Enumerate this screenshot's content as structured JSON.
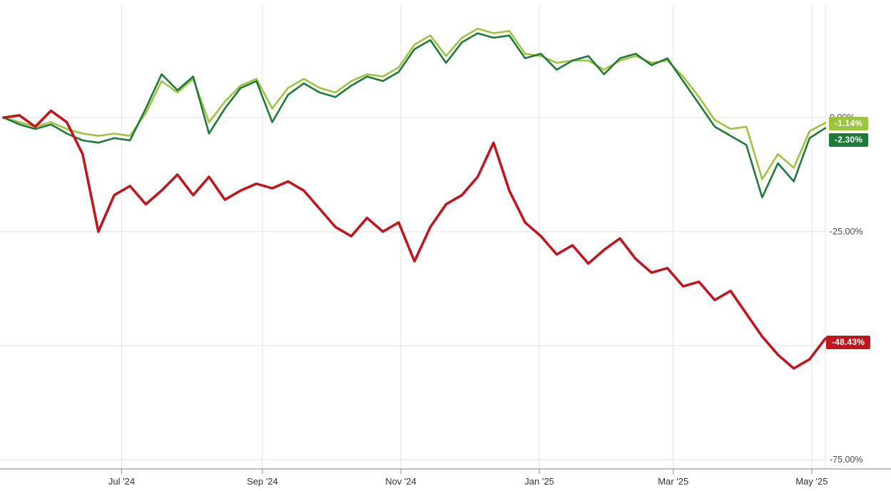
{
  "chart_data": {
    "type": "line",
    "title": "",
    "xlabel": "",
    "ylabel": "",
    "grid": true,
    "legend_position": "none (end-value badges at right edge)",
    "x_axis": {
      "total_days": 362,
      "ticks": [
        {
          "label": "Jul '24",
          "day": 52
        },
        {
          "label": "Sep '24",
          "day": 114
        },
        {
          "label": "Nov '24",
          "day": 175
        },
        {
          "label": "Jan '25",
          "day": 236
        },
        {
          "label": "Mar '25",
          "day": 295
        },
        {
          "label": "May '25",
          "day": 356
        }
      ]
    },
    "y_axis": {
      "unit": "%",
      "range": [
        -75,
        22
      ],
      "ticks": [
        {
          "value": 0,
          "label": "0.00%"
        },
        {
          "value": -25,
          "label": "-25.00%"
        },
        {
          "value": -50,
          "label": ""
        },
        {
          "value": -75,
          "label": "-75.00%"
        }
      ]
    },
    "series": [
      {
        "name": "light-green",
        "color": "#9bc53d",
        "width": 2.6,
        "final_value": -1.14,
        "final_label": "-1.14%",
        "values": [
          0,
          -1,
          -2,
          -1,
          -2.5,
          -3.5,
          -4,
          -3.5,
          -4,
          1,
          8,
          5.5,
          8.5,
          -1,
          3.5,
          7,
          8.5,
          2,
          6.5,
          8.5,
          6.5,
          5.5,
          8,
          9.5,
          9,
          11,
          16,
          18,
          13.5,
          17.5,
          19.5,
          18.5,
          19,
          14,
          13.5,
          12,
          12.5,
          12.5,
          10.5,
          12.5,
          13.5,
          12,
          12.5,
          9,
          4.5,
          -0.5,
          -2.5,
          -2,
          -13.5,
          -8,
          -11,
          -3,
          -1.14
        ]
      },
      {
        "name": "dark-green",
        "color": "#1e7a38",
        "width": 2.6,
        "final_value": -2.3,
        "final_label": "-2.30%",
        "values": [
          0,
          -1.5,
          -2.5,
          -1.5,
          -3.5,
          -5,
          -5.5,
          -4.5,
          -5,
          2,
          9.5,
          6,
          9,
          -3.5,
          2,
          6.5,
          8,
          -1,
          5,
          7.5,
          5.5,
          4.5,
          7,
          9,
          8,
          10,
          15,
          17,
          12,
          16.5,
          18.5,
          17.5,
          18,
          13,
          14,
          10.5,
          12.5,
          13.5,
          9.5,
          13,
          14,
          11.5,
          13,
          8,
          3,
          -2,
          -4,
          -6,
          -17.5,
          -10,
          -14,
          -4.5,
          -2.3
        ]
      },
      {
        "name": "red",
        "color": "#c0161d",
        "width": 3.6,
        "final_value": -48.43,
        "final_label": "-48.43%",
        "values": [
          0,
          0.5,
          -2,
          1.5,
          -1,
          -8,
          -25,
          -17,
          -15,
          -19,
          -16,
          -12.5,
          -17,
          -13,
          -18,
          -16,
          -14.5,
          -15.5,
          -14,
          -16,
          -20,
          -24,
          -26,
          -22,
          -25,
          -23,
          -31.5,
          -24,
          -19,
          -17,
          -13,
          -5.5,
          -16,
          -23,
          -26,
          -30,
          -28,
          -32,
          -29,
          -26.5,
          -31,
          -34,
          -33,
          -37,
          -36,
          -40,
          -38,
          -43,
          -48,
          -52,
          -55,
          -53,
          -48.43
        ]
      }
    ]
  },
  "badges": [
    {
      "label": "-1.14%",
      "color": "#9bc53d"
    },
    {
      "label": "-2.30%",
      "color": "#1e7a38"
    },
    {
      "label": "-48.43%",
      "color": "#c0161d"
    }
  ],
  "colors": {
    "background": "#ffffff",
    "gridline": "#e2e2e2",
    "axis_line": "#9b9b9b",
    "x_label_text": "#333333",
    "y_label_text": "#4a4a4a"
  }
}
